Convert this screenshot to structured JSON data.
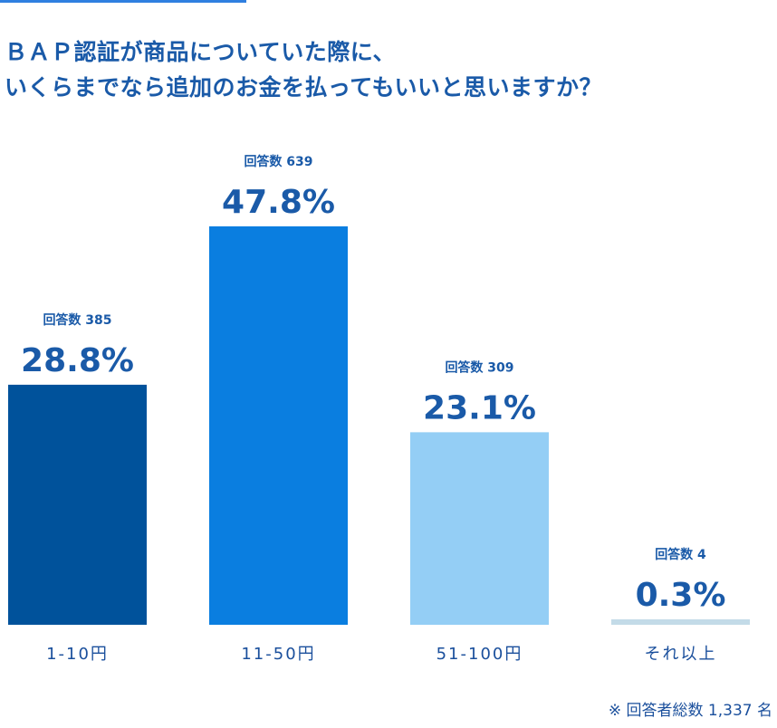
{
  "title_lines": [
    "ＢＡＰ認証が商品についていた際に、",
    "いくらまでなら追加のお金を払ってもいいと思いますか？"
  ],
  "footnote": "※ 回答者総数 1,337 名",
  "chart_data": {
    "type": "bar",
    "title": "ＢＡＰ認証が商品についていた際に、いくらまでなら追加のお金を払ってもいいと思いますか？",
    "xlabel": "",
    "ylabel": "",
    "ylim": [
      0,
      47.8
    ],
    "grid": false,
    "categories": [
      "1-10円",
      "11-50円",
      "51-100円",
      "それ以上"
    ],
    "values": [
      28.8,
      47.8,
      23.1,
      0.3
    ],
    "value_labels": [
      "28.8%",
      "47.8%",
      "23.1%",
      "0.3%"
    ],
    "counts": [
      "回答数 385",
      "回答数 639",
      "回答数 309",
      "回答数 4"
    ],
    "colors": [
      "#00529b",
      "#0a7ee0",
      "#94cef5",
      "#c3dbe8"
    ],
    "total_respondents": 1337
  }
}
